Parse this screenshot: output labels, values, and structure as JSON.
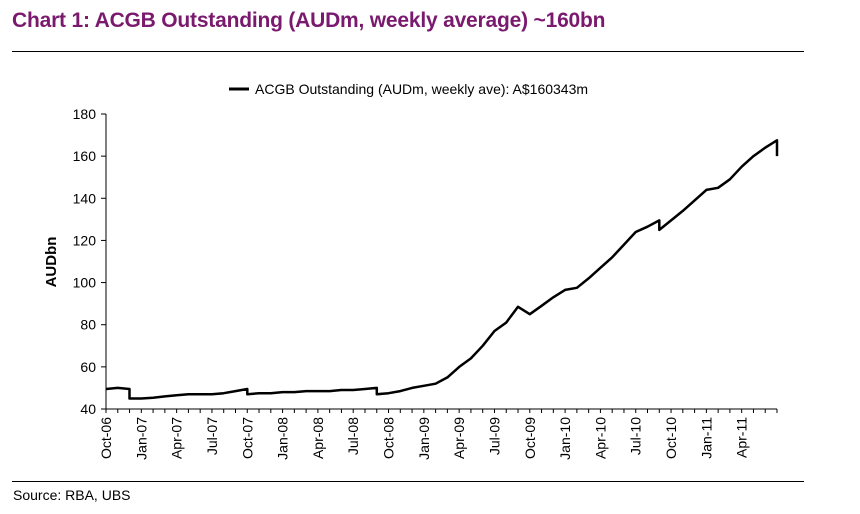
{
  "title": "Chart 1: ACGB Outstanding (AUDm, weekly average) ~160bn",
  "source": "Source: RBA, UBS",
  "colors": {
    "title": "#7a1a6e",
    "line": "#000000"
  },
  "chart_data": {
    "type": "line",
    "legend_position": "top-center",
    "grid": false,
    "ylabel": "AUDbn",
    "ylim": [
      40,
      180
    ],
    "yticks": [
      40,
      60,
      80,
      100,
      120,
      140,
      160,
      180
    ],
    "xlim": [
      "2006-10",
      "2011-07"
    ],
    "xtick_labels": [
      "Oct-06",
      "Jan-07",
      "Apr-07",
      "Jul-07",
      "Oct-07",
      "Jan-08",
      "Apr-08",
      "Jul-08",
      "Oct-08",
      "Jan-09",
      "Apr-09",
      "Jul-09",
      "Oct-09",
      "Jan-10",
      "Apr-10",
      "Jul-10",
      "Oct-10",
      "Jan-11",
      "Apr-11"
    ],
    "series": [
      {
        "name": "ACGB Outstanding (AUDm, weekly ave): A$160343m",
        "points": [
          [
            "2006-10",
            49.5
          ],
          [
            "2006-11",
            50.0
          ],
          [
            "2006-12",
            49.5
          ],
          [
            "2006-12",
            45.0
          ],
          [
            "2007-01",
            45.0
          ],
          [
            "2007-02",
            45.3
          ],
          [
            "2007-03",
            46.0
          ],
          [
            "2007-04",
            46.5
          ],
          [
            "2007-05",
            47.0
          ],
          [
            "2007-06",
            47.0
          ],
          [
            "2007-07",
            47.0
          ],
          [
            "2007-08",
            47.5
          ],
          [
            "2007-09",
            48.5
          ],
          [
            "2007-10",
            49.5
          ],
          [
            "2007-10",
            47.0
          ],
          [
            "2007-11",
            47.5
          ],
          [
            "2007-12",
            47.5
          ],
          [
            "2008-01",
            48.0
          ],
          [
            "2008-02",
            48.0
          ],
          [
            "2008-03",
            48.5
          ],
          [
            "2008-04",
            48.5
          ],
          [
            "2008-05",
            48.5
          ],
          [
            "2008-06",
            49.0
          ],
          [
            "2008-07",
            49.0
          ],
          [
            "2008-08",
            49.5
          ],
          [
            "2008-09",
            50.0
          ],
          [
            "2008-09",
            47.0
          ],
          [
            "2008-10",
            47.5
          ],
          [
            "2008-11",
            48.5
          ],
          [
            "2008-12",
            50.0
          ],
          [
            "2009-01",
            51.0
          ],
          [
            "2009-02",
            52.0
          ],
          [
            "2009-03",
            55.0
          ],
          [
            "2009-04",
            60.0
          ],
          [
            "2009-05",
            64.0
          ],
          [
            "2009-06",
            70.0
          ],
          [
            "2009-07",
            77.0
          ],
          [
            "2009-08",
            81.0
          ],
          [
            "2009-09",
            88.5
          ],
          [
            "2009-10",
            85.0
          ],
          [
            "2009-11",
            89.0
          ],
          [
            "2009-12",
            93.0
          ],
          [
            "2010-01",
            96.5
          ],
          [
            "2010-02",
            97.5
          ],
          [
            "2010-03",
            102.0
          ],
          [
            "2010-04",
            107.0
          ],
          [
            "2010-05",
            112.0
          ],
          [
            "2010-06",
            118.0
          ],
          [
            "2010-07",
            124.0
          ],
          [
            "2010-08",
            126.5
          ],
          [
            "2010-09",
            129.5
          ],
          [
            "2010-09",
            125.0
          ],
          [
            "2010-10",
            129.5
          ],
          [
            "2010-11",
            134.0
          ],
          [
            "2010-12",
            139.0
          ],
          [
            "2011-01",
            144.0
          ],
          [
            "2011-02",
            145.0
          ],
          [
            "2011-03",
            149.0
          ],
          [
            "2011-04",
            155.0
          ],
          [
            "2011-05",
            160.0
          ],
          [
            "2011-06",
            164.0
          ],
          [
            "2011-07",
            167.5
          ],
          [
            "2011-07",
            160.0
          ]
        ]
      }
    ]
  }
}
